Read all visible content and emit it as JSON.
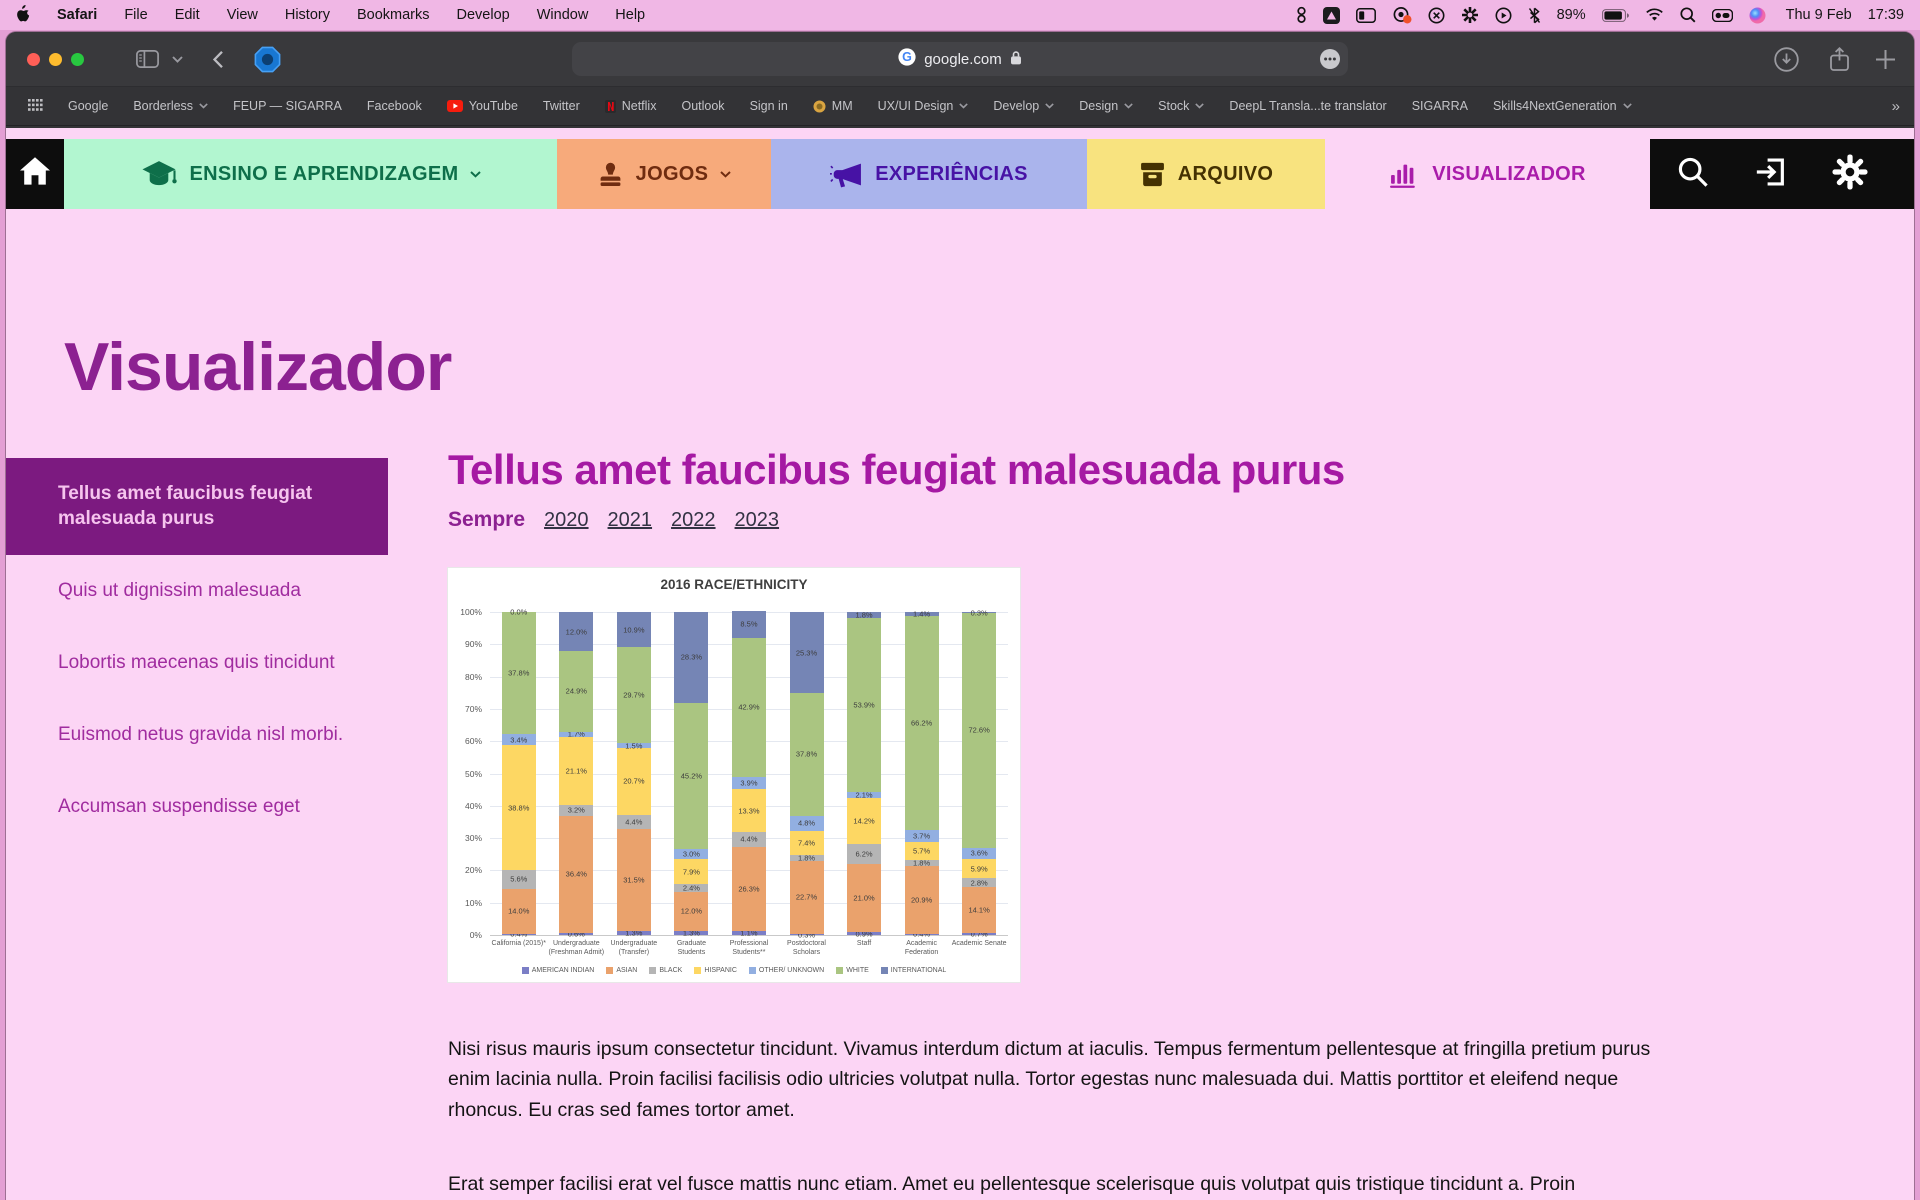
{
  "menu_bar": {
    "items": [
      "Safari",
      "File",
      "Edit",
      "View",
      "History",
      "Bookmarks",
      "Develop",
      "Window",
      "Help"
    ],
    "status": {
      "battery_percent": "89%",
      "date": "Thu 9 Feb",
      "time": "17:39"
    }
  },
  "browser": {
    "address": "google.com"
  },
  "bookmarks_bar": {
    "overflow": "»",
    "items": [
      {
        "label": "Google"
      },
      {
        "label": "Borderless",
        "chevron": true
      },
      {
        "label": "FEUP — SIGARRA"
      },
      {
        "label": "Facebook"
      },
      {
        "label": "YouTube",
        "icon": "youtube-icon"
      },
      {
        "label": "Twitter"
      },
      {
        "label": "Netflix",
        "icon": "netflix-icon"
      },
      {
        "label": "Outlook"
      },
      {
        "label": "Sign in"
      },
      {
        "label": "MM",
        "icon": "mm-icon"
      },
      {
        "label": "UX/UI Design",
        "chevron": true
      },
      {
        "label": "Develop",
        "chevron": true
      },
      {
        "label": "Design",
        "chevron": true
      },
      {
        "label": "Stock",
        "chevron": true
      },
      {
        "label": "DeepL Transla...te translator"
      },
      {
        "label": "SIGARRA"
      },
      {
        "label": "Skills4NextGeneration",
        "chevron": true
      }
    ]
  },
  "site_nav": {
    "items": [
      {
        "label": "ENSINO E APRENDIZAGEM",
        "chevron": true,
        "bg": "#b2f6d0",
        "fg": "#0e6f4a",
        "icon": "graduation-cap-icon"
      },
      {
        "label": "JOGOS",
        "chevron": true,
        "bg": "#f7aa7b",
        "fg": "#6f2c10",
        "icon": "stamp-icon"
      },
      {
        "label": "EXPERIÊNCIAS",
        "chevron": false,
        "bg": "#aab4ec",
        "fg": "#4712a5",
        "icon": "megaphone-icon"
      },
      {
        "label": "ARQUIVO",
        "chevron": false,
        "bg": "#f8e37f",
        "fg": "#453202",
        "icon": "archive-box-icon"
      },
      {
        "label": "VISUALIZADOR",
        "chevron": false,
        "bg": "#fcd5f5",
        "fg": "#a91caa",
        "icon": "bar-chart-icon",
        "active": true
      }
    ]
  },
  "page": {
    "title": "Visualizador",
    "sidebar": {
      "items": [
        {
          "label": "Tellus amet faucibus feugiat malesuada purus",
          "active": true
        },
        {
          "label": "Quis ut dignissim malesuada"
        },
        {
          "label": " Lobortis maecenas quis tincidunt"
        },
        {
          "label": "Euismod netus gravida nisl morbi."
        },
        {
          "label": "Accumsan suspendisse eget"
        }
      ]
    },
    "section": {
      "heading": "Tellus amet faucibus feugiat malesuada purus",
      "filter_label": "Sempre",
      "filter_years": [
        "2020",
        "2021",
        "2022",
        "2023"
      ],
      "paragraphs": [
        "Nisi risus mauris ipsum consectetur tincidunt. Vivamus interdum dictum at iaculis. Tempus fermentum pellentesque at fringilla pretium purus enim lacinia nulla. Proin facilisi facilisis odio ultricies volutpat nulla. Tortor egestas nunc malesuada dui. Mattis porttitor et eleifend neque rhoncus. Eu cras sed fames tortor amet.",
        "Erat semper facilisi erat vel fusce mattis nunc etiam. Amet eu pellentesque scelerisque quis volutpat quis tristique tincidunt a. Proin"
      ]
    }
  },
  "chart_data": {
    "type": "bar",
    "stacked": true,
    "title": "2016 RACE/ETHNICITY",
    "grid": true,
    "legend_position": "bottom",
    "ylim": [
      0,
      100
    ],
    "y_ticks": [
      "0%",
      "10%",
      "20%",
      "30%",
      "40%",
      "50%",
      "60%",
      "70%",
      "80%",
      "90%",
      "100%"
    ],
    "categories": [
      [
        "California (2015)*"
      ],
      [
        "Undergraduate",
        "(Freshman Admit)"
      ],
      [
        "Undergraduate",
        "(Transfer)"
      ],
      [
        "Graduate Students"
      ],
      [
        "Professional",
        "Students**"
      ],
      [
        "Postdoctoral",
        "Scholars"
      ],
      [
        "Staff"
      ],
      [
        "Academic",
        "Federation"
      ],
      [
        "Academic Senate"
      ]
    ],
    "series": [
      {
        "name": "AMERICAN INDIAN",
        "color": "#7b7ec6",
        "values": [
          0.4,
          0.6,
          1.3,
          1.3,
          1.1,
          0.3,
          0.9,
          0.4,
          0.7
        ]
      },
      {
        "name": "ASIAN",
        "color": "#eaa26c",
        "values": [
          14.0,
          36.4,
          31.5,
          12.0,
          26.3,
          22.7,
          21.0,
          20.9,
          14.1
        ]
      },
      {
        "name": "BLACK",
        "color": "#b5b5b5",
        "values": [
          5.6,
          3.2,
          4.4,
          2.4,
          4.4,
          1.8,
          6.2,
          1.8,
          2.8
        ]
      },
      {
        "name": "HISPANIC",
        "color": "#fdd763",
        "values": [
          38.8,
          21.1,
          20.7,
          7.9,
          13.3,
          7.4,
          14.2,
          5.7,
          5.9
        ]
      },
      {
        "name": "OTHER/ UNKNOWN",
        "color": "#92afe1",
        "values": [
          3.4,
          1.7,
          1.5,
          3.0,
          3.9,
          4.8,
          2.1,
          3.7,
          3.6
        ]
      },
      {
        "name": "WHITE",
        "color": "#aac581",
        "values": [
          37.8,
          24.9,
          29.7,
          45.2,
          42.9,
          37.8,
          53.9,
          66.2,
          72.6
        ]
      },
      {
        "name": "INTERNATIONAL",
        "color": "#7585b5",
        "values": [
          0.0,
          12.0,
          10.9,
          28.3,
          8.5,
          25.3,
          1.8,
          1.4,
          0.3
        ]
      }
    ]
  }
}
